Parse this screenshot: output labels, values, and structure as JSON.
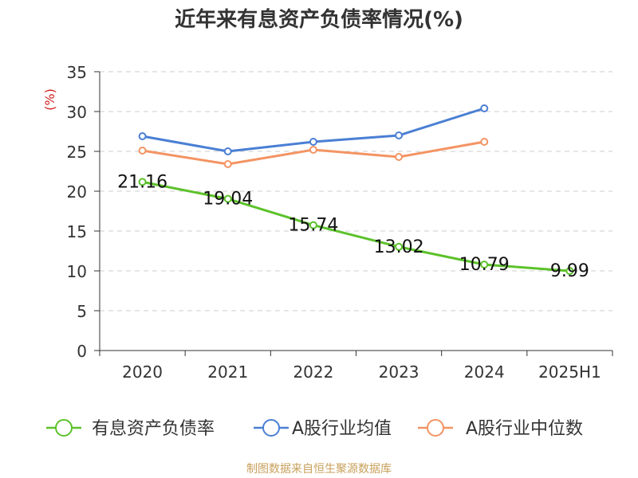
{
  "chart_data": {
    "type": "line",
    "title": "近年来有息资产负债率情况(%)",
    "ylabel": "(%)",
    "xlabel": "",
    "categories": [
      "2020",
      "2021",
      "2022",
      "2023",
      "2024",
      "2025H1"
    ],
    "ylim": [
      0,
      35
    ],
    "yticks": [
      0,
      5,
      10,
      15,
      20,
      25,
      30,
      35
    ],
    "grid": "horizontal-dashed",
    "legend_position": "bottom",
    "series": [
      {
        "name": "有息资产负债率",
        "color": "#5cc22a",
        "values": [
          21.16,
          19.04,
          15.74,
          13.02,
          10.79,
          9.99
        ],
        "data_labels": [
          "21.16",
          "19.04",
          "15.74",
          "13.02",
          "10.79",
          "9.99"
        ]
      },
      {
        "name": "A股行业均值",
        "color": "#4a7fd4",
        "values": [
          26.9,
          25.0,
          26.2,
          27.0,
          30.4,
          null
        ]
      },
      {
        "name": "A股行业中位数",
        "color": "#f39463",
        "values": [
          25.1,
          23.4,
          25.2,
          24.3,
          26.2,
          null
        ]
      }
    ],
    "source": "制图数据来自恒生聚源数据库"
  }
}
